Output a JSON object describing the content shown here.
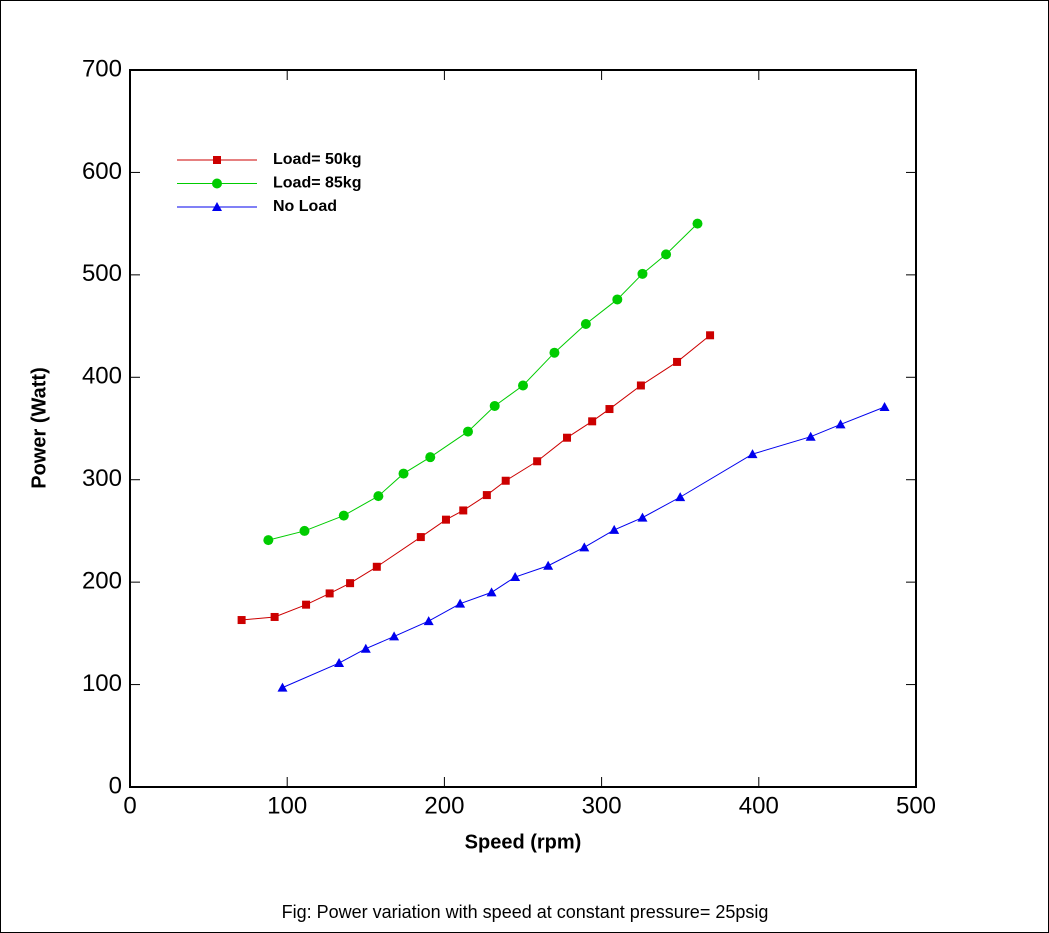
{
  "chart_data": {
    "type": "line",
    "caption": "Fig: Power variation with speed at constant pressure= 25psig",
    "x_label": "Speed (rpm)",
    "y_label": "Power (Watt)",
    "xlim": [
      0,
      500
    ],
    "xticks": [
      0,
      100,
      200,
      300,
      400,
      500
    ],
    "ylim": [
      0,
      700
    ],
    "yticks": [
      0,
      100,
      200,
      300,
      400,
      500,
      600,
      700
    ],
    "legend": "upper left",
    "series": [
      {
        "name": "Load= 50kg",
        "color": "#cc0000",
        "marker": "square",
        "x": [
          71,
          92,
          112,
          127,
          140,
          157,
          185,
          201,
          212,
          227,
          239,
          259,
          278,
          294,
          305,
          325,
          348,
          369
        ],
        "values": [
          163,
          166,
          178,
          189,
          199,
          215,
          244,
          261,
          270,
          285,
          299,
          318,
          341,
          357,
          369,
          392,
          415,
          441
        ]
      },
      {
        "name": "Load= 85kg",
        "color": "#00cc00",
        "marker": "circle",
        "x": [
          88,
          111,
          136,
          158,
          174,
          191,
          215,
          232,
          250,
          270,
          290,
          310,
          326,
          341,
          361
        ],
        "values": [
          241,
          250,
          265,
          284,
          306,
          322,
          347,
          372,
          392,
          424,
          452,
          476,
          501,
          520,
          550
        ]
      },
      {
        "name": "No Load",
        "color": "#0000ee",
        "marker": "triangle",
        "x": [
          97,
          133,
          150,
          168,
          190,
          210,
          230,
          245,
          266,
          289,
          308,
          326,
          350,
          396,
          433,
          452,
          480
        ],
        "values": [
          97,
          121,
          135,
          147,
          162,
          179,
          190,
          205,
          216,
          234,
          251,
          263,
          283,
          325,
          342,
          354,
          371
        ]
      }
    ]
  }
}
